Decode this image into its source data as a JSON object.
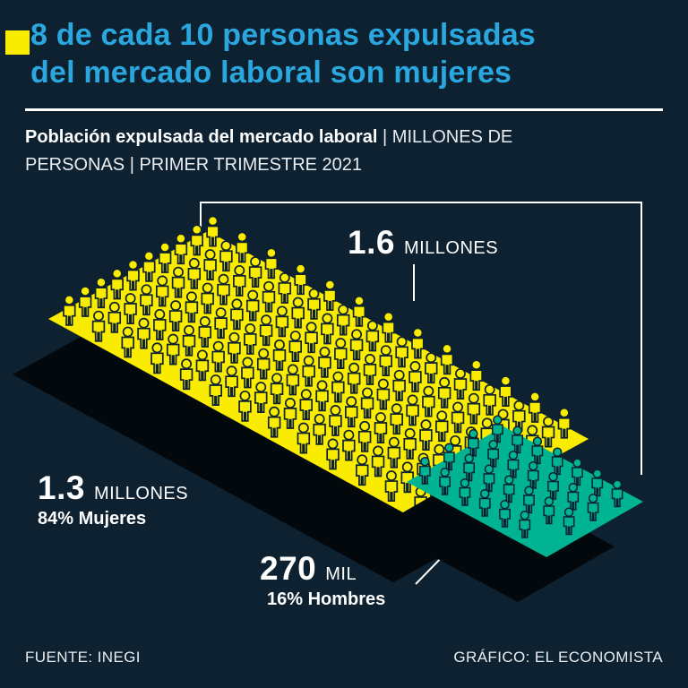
{
  "page": {
    "background": "#0d2130",
    "accent_color": "#f9ec00",
    "title_color": "#2aa7df"
  },
  "header": {
    "title_line1": "8 de cada 10 personas expulsadas",
    "title_line2": "del mercado laboral son mujeres"
  },
  "subtitle": {
    "bold": "Población expulsada del mercado laboral",
    "rest_line1": "| MILLONES DE",
    "line2": "PERSONAS | PRIMER TRIMESTRE 2021"
  },
  "chart_data": {
    "type": "pictogram",
    "title": "Población expulsada del mercado laboral",
    "units": "millones de personas",
    "period": "Primer trimestre 2021",
    "shadow_color": "#03080d",
    "guide_color": "#ffffff",
    "total": {
      "value": "1.6",
      "unit": "MILLONES"
    },
    "series": [
      {
        "name": "Mujeres",
        "value": "1.3",
        "unit": "MILLONES",
        "share": "84%",
        "pct_label": "84% Mujeres",
        "color": "#f9ec00",
        "icon_count": 130,
        "icon_rows": 10
      },
      {
        "name": "Hombres",
        "value": "270",
        "unit": "MIL",
        "share": "16%",
        "pct_label": "16% Hombres",
        "color": "#00b493",
        "icon_count": 27,
        "icon_rows": 4
      }
    ]
  },
  "footer": {
    "source": "FUENTE: INEGI",
    "credit": "GRÁFICO: EL ECONOMISTA"
  }
}
